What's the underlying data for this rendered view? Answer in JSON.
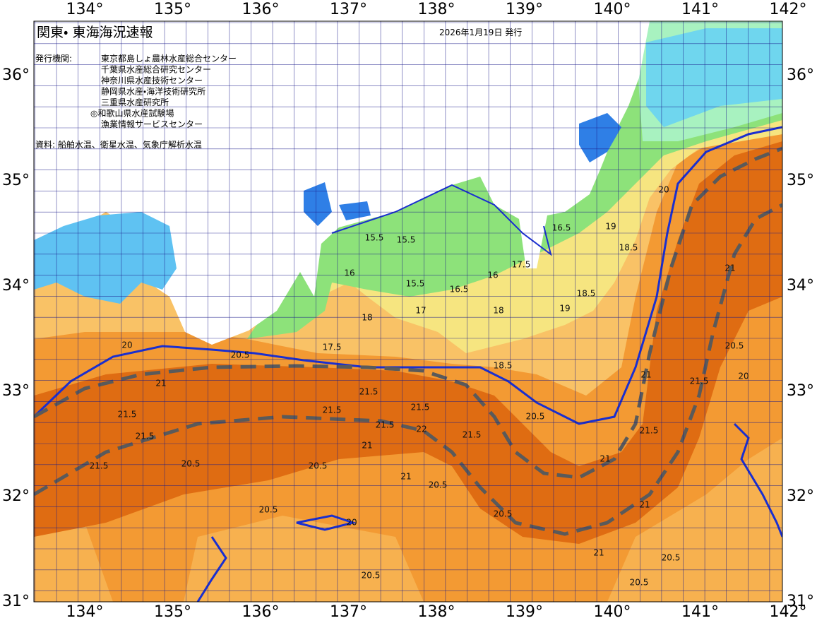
{
  "header": {
    "title": "関東・ 東海海況速報",
    "date": "2026年1月19日 発行"
  },
  "publisher": {
    "label": "発行機関:",
    "agencies": [
      "東京都島しょ農林水産総合センター",
      "千葉県水産総合研究センター",
      "神奈川県水産技術センター",
      "静岡県水産・海洋技術研究所",
      "三重県水産研究所",
      "◎和歌山県水産試験場",
      "漁業情報サービスセンター"
    ]
  },
  "source": "資料: 船舶水温、衛星水温、気象庁解析水温",
  "axes": {
    "longitude": [
      "134°",
      "135°",
      "136°",
      "137°",
      "138°",
      "139°",
      "140°",
      "141°",
      "142°"
    ],
    "latitude": [
      "36°",
      "35°",
      "34°",
      "33°",
      "32°",
      "31°"
    ]
  },
  "contour_labels": [
    "15.5",
    "15.5",
    "15.5",
    "16",
    "16",
    "16.5",
    "16.5",
    "17",
    "17.5",
    "17.5",
    "18",
    "18",
    "18.5",
    "18.5",
    "18.5",
    "19",
    "19",
    "20",
    "20",
    "20",
    "20",
    "20.5",
    "20.5",
    "20.5",
    "20.5",
    "20.5",
    "20.5",
    "20.5",
    "20.5",
    "20.5",
    "20.5",
    "20.5",
    "21",
    "21",
    "21",
    "21",
    "21",
    "21",
    "21",
    "21",
    "21.5",
    "21.5",
    "21.5",
    "21.5",
    "21.5",
    "21.5",
    "21.5",
    "21.5",
    "21.5",
    "21.5",
    "22"
  ]
}
